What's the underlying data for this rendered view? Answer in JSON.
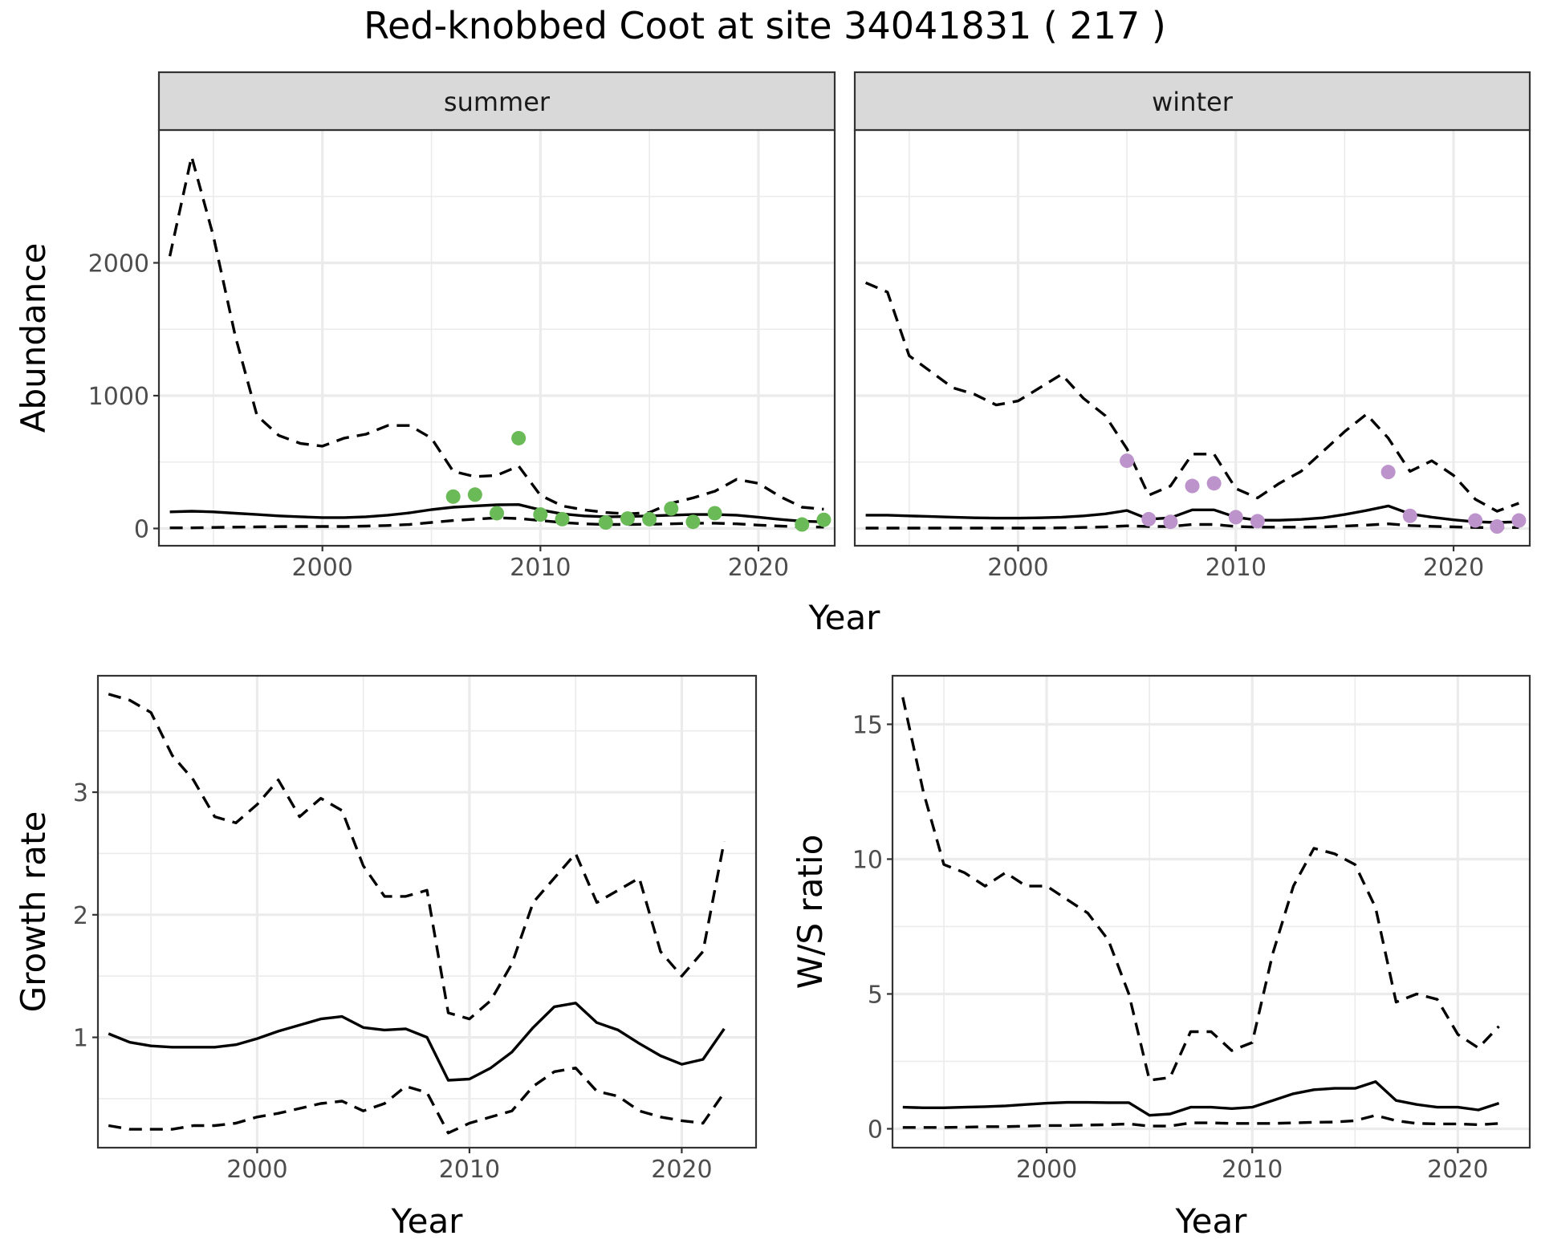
{
  "figure_title": "Red-knobbed Coot at site 34041831 ( 217 )",
  "colors": {
    "summer_points": "#6aba57",
    "winter_points": "#bd93cc",
    "lines": "#000000"
  },
  "chart_data": [
    {
      "id": "abundance",
      "type": "line",
      "ylabel": "Abundance",
      "xlabel": "Year",
      "x_ticks": [
        2000,
        2010,
        2020
      ],
      "y_ticks": [
        0,
        1000,
        2000
      ],
      "xlim": [
        1992.5,
        2023.5
      ],
      "ylim": [
        -130,
        3000
      ],
      "facets": [
        {
          "strip": "summer",
          "line_style": "solid = estimate, dashed = confidence bounds",
          "x": [
            1993,
            1994,
            1995,
            1996,
            1997,
            1998,
            1999,
            2000,
            2001,
            2002,
            2003,
            2004,
            2005,
            2006,
            2007,
            2008,
            2009,
            2010,
            2011,
            2012,
            2013,
            2014,
            2015,
            2016,
            2017,
            2018,
            2019,
            2020,
            2021,
            2022,
            2023
          ],
          "estimate": [
            125,
            130,
            125,
            115,
            105,
            95,
            88,
            82,
            82,
            88,
            100,
            118,
            142,
            160,
            170,
            178,
            180,
            140,
            110,
            95,
            88,
            90,
            95,
            100,
            105,
            105,
            100,
            85,
            68,
            55,
            50
          ],
          "upper": [
            2050,
            2800,
            2200,
            1450,
            850,
            700,
            640,
            620,
            680,
            710,
            775,
            775,
            680,
            430,
            390,
            400,
            470,
            250,
            170,
            140,
            120,
            110,
            120,
            190,
            230,
            280,
            370,
            340,
            240,
            160,
            145
          ],
          "lower": [
            5,
            5,
            8,
            10,
            12,
            14,
            15,
            15,
            15,
            18,
            22,
            30,
            45,
            60,
            70,
            80,
            75,
            60,
            45,
            35,
            30,
            30,
            32,
            35,
            40,
            40,
            35,
            25,
            18,
            12,
            10
          ],
          "points": {
            "x": [
              2006,
              2007,
              2008,
              2009,
              2010,
              2011,
              2013,
              2014,
              2015,
              2016,
              2017,
              2018,
              2022,
              2023
            ],
            "y": [
              240,
              255,
              115,
              680,
              105,
              70,
              45,
              75,
              70,
              150,
              50,
              115,
              30,
              65
            ]
          }
        },
        {
          "strip": "winter",
          "x": [
            1993,
            1994,
            1995,
            1996,
            1997,
            1998,
            1999,
            2000,
            2001,
            2002,
            2003,
            2004,
            2005,
            2006,
            2007,
            2008,
            2009,
            2010,
            2011,
            2012,
            2013,
            2014,
            2015,
            2016,
            2017,
            2018,
            2019,
            2020,
            2021,
            2022,
            2023
          ],
          "estimate": [
            100,
            100,
            95,
            90,
            85,
            80,
            78,
            78,
            80,
            85,
            95,
            110,
            135,
            70,
            80,
            140,
            140,
            85,
            62,
            62,
            68,
            80,
            105,
            135,
            170,
            110,
            85,
            65,
            50,
            45,
            50
          ],
          "upper": [
            1850,
            1780,
            1300,
            1180,
            1060,
            1010,
            930,
            960,
            1060,
            1160,
            980,
            850,
            600,
            250,
            320,
            560,
            560,
            300,
            230,
            340,
            430,
            580,
            730,
            860,
            680,
            430,
            510,
            400,
            220,
            130,
            190
          ],
          "lower": [
            3,
            3,
            3,
            3,
            3,
            3,
            3,
            3,
            3,
            5,
            8,
            12,
            20,
            15,
            15,
            30,
            30,
            15,
            10,
            10,
            10,
            12,
            18,
            25,
            35,
            22,
            16,
            12,
            8,
            6,
            8
          ],
          "points": {
            "x": [
              2005,
              2006,
              2007,
              2008,
              2009,
              2010,
              2011,
              2017,
              2018,
              2021,
              2022,
              2023
            ],
            "y": [
              510,
              70,
              50,
              320,
              340,
              85,
              55,
              425,
              95,
              60,
              15,
              60
            ]
          }
        }
      ]
    },
    {
      "id": "growth",
      "type": "line",
      "ylabel": "Growth rate",
      "xlabel": "Year",
      "x_ticks": [
        2000,
        2010,
        2020
      ],
      "y_ticks": [
        1,
        2,
        3
      ],
      "xlim": [
        1992.5,
        2023.5
      ],
      "ylim": [
        0.1,
        3.95
      ],
      "x": [
        1993,
        1994,
        1995,
        1996,
        1997,
        1998,
        1999,
        2000,
        2001,
        2002,
        2003,
        2004,
        2005,
        2006,
        2007,
        2008,
        2009,
        2010,
        2011,
        2012,
        2013,
        2014,
        2015,
        2016,
        2017,
        2018,
        2019,
        2020,
        2021,
        2022
      ],
      "estimate": [
        1.03,
        0.96,
        0.93,
        0.92,
        0.92,
        0.92,
        0.94,
        0.99,
        1.05,
        1.1,
        1.15,
        1.17,
        1.08,
        1.06,
        1.07,
        1.0,
        0.65,
        0.66,
        0.75,
        0.88,
        1.08,
        1.25,
        1.28,
        1.12,
        1.06,
        0.95,
        0.85,
        0.78,
        0.82,
        1.07
      ],
      "upper": [
        3.8,
        3.75,
        3.65,
        3.3,
        3.1,
        2.8,
        2.75,
        2.9,
        3.1,
        2.8,
        2.95,
        2.85,
        2.4,
        2.15,
        2.15,
        2.2,
        1.2,
        1.15,
        1.3,
        1.6,
        2.1,
        2.3,
        2.5,
        2.1,
        2.2,
        2.3,
        1.7,
        1.5,
        1.7,
        2.6
      ],
      "lower": [
        0.28,
        0.25,
        0.25,
        0.25,
        0.28,
        0.28,
        0.3,
        0.35,
        0.38,
        0.42,
        0.46,
        0.48,
        0.4,
        0.46,
        0.6,
        0.55,
        0.22,
        0.3,
        0.35,
        0.4,
        0.6,
        0.72,
        0.75,
        0.56,
        0.52,
        0.4,
        0.35,
        0.32,
        0.3,
        0.55
      ]
    },
    {
      "id": "ratio",
      "type": "line",
      "ylabel": "W/S ratio",
      "xlabel": "Year",
      "x_ticks": [
        2000,
        2010,
        2020
      ],
      "y_ticks": [
        0,
        5,
        10,
        15
      ],
      "xlim": [
        1992.5,
        2023.5
      ],
      "ylim": [
        -0.7,
        16.8
      ],
      "x": [
        1993,
        1994,
        1995,
        1996,
        1997,
        1998,
        1999,
        2000,
        2001,
        2002,
        2003,
        2004,
        2005,
        2006,
        2007,
        2008,
        2009,
        2010,
        2011,
        2012,
        2013,
        2014,
        2015,
        2016,
        2017,
        2018,
        2019,
        2020,
        2021,
        2022
      ],
      "estimate": [
        0.8,
        0.78,
        0.78,
        0.8,
        0.82,
        0.85,
        0.9,
        0.95,
        0.98,
        0.98,
        0.97,
        0.97,
        0.5,
        0.55,
        0.8,
        0.8,
        0.75,
        0.8,
        1.05,
        1.3,
        1.45,
        1.5,
        1.5,
        1.75,
        1.05,
        0.9,
        0.8,
        0.8,
        0.7,
        0.95
      ],
      "upper": [
        16.0,
        12.5,
        9.8,
        9.5,
        9.0,
        9.5,
        9.0,
        9.0,
        8.5,
        8.0,
        7.0,
        5.0,
        1.8,
        1.9,
        3.6,
        3.6,
        2.9,
        3.2,
        6.5,
        9.0,
        10.4,
        10.2,
        9.8,
        8.2,
        4.7,
        5.0,
        4.8,
        3.5,
        3.0,
        3.8
      ],
      "lower": [
        0.05,
        0.05,
        0.05,
        0.06,
        0.08,
        0.08,
        0.1,
        0.12,
        0.12,
        0.14,
        0.15,
        0.18,
        0.1,
        0.1,
        0.22,
        0.22,
        0.2,
        0.2,
        0.2,
        0.22,
        0.24,
        0.25,
        0.3,
        0.5,
        0.3,
        0.2,
        0.18,
        0.18,
        0.15,
        0.2
      ]
    }
  ]
}
